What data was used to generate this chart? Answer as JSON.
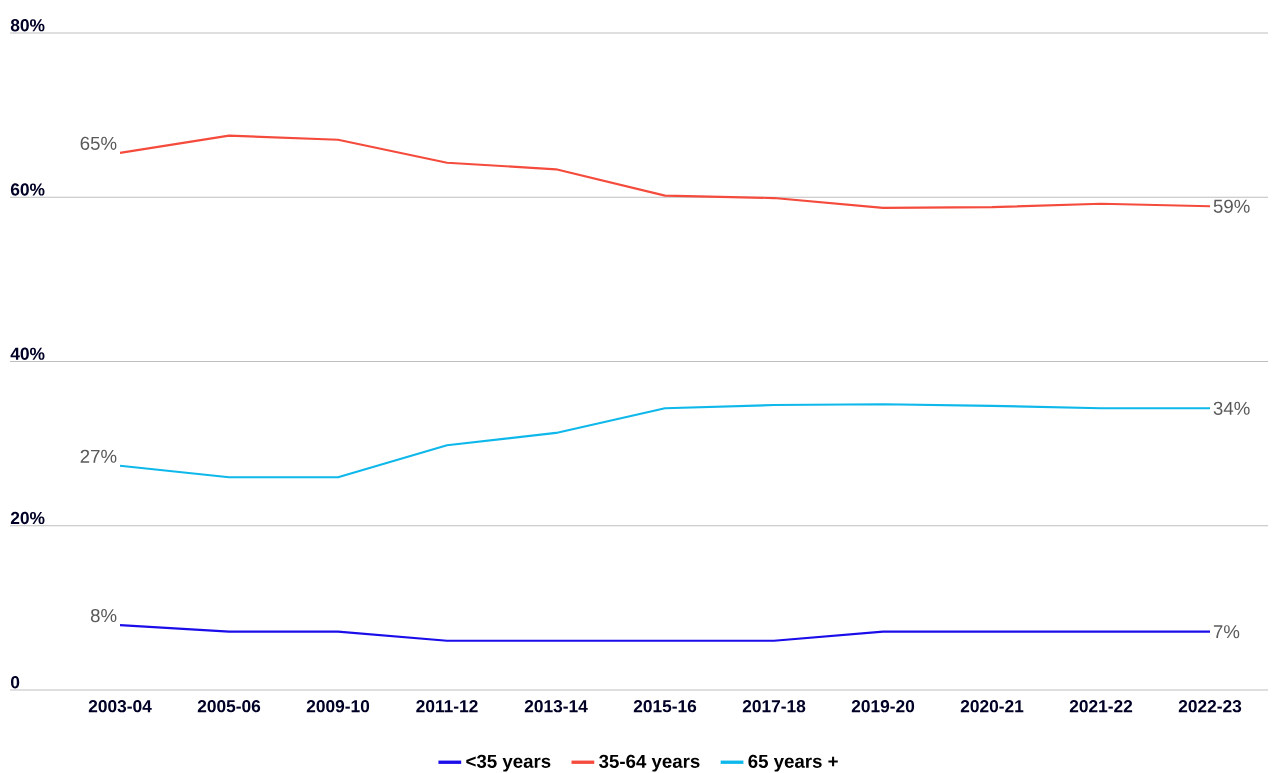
{
  "chart_data": {
    "type": "line",
    "categories": [
      "2003-04",
      "2005-06",
      "2009-10",
      "2011-12",
      "2013-14",
      "2015-16",
      "2017-18",
      "2019-20",
      "2020-21",
      "2021-22",
      "2022-23"
    ],
    "series": [
      {
        "name": "<35 years",
        "color": "#1a0dea",
        "values": [
          7.9,
          7.1,
          7.1,
          6.0,
          6.0,
          6.0,
          6.0,
          7.1,
          7.1,
          7.1,
          7.1
        ],
        "value_labels": [
          "8%",
          null,
          null,
          null,
          null,
          null,
          null,
          null,
          null,
          null,
          "7%"
        ]
      },
      {
        "name": "35-64 years",
        "color": "#f44b3c",
        "values": [
          65.4,
          67.5,
          67.0,
          64.2,
          63.4,
          60.2,
          59.9,
          58.7,
          58.8,
          59.2,
          58.9
        ],
        "value_labels": [
          "65%",
          null,
          null,
          null,
          null,
          null,
          null,
          null,
          null,
          null,
          "59%"
        ]
      },
      {
        "name": "65 years +",
        "color": "#0fb8ea",
        "values": [
          27.3,
          25.9,
          25.9,
          29.8,
          31.3,
          34.3,
          34.7,
          34.8,
          34.6,
          34.3,
          34.3
        ],
        "value_labels": [
          "27%",
          null,
          null,
          null,
          null,
          null,
          null,
          null,
          null,
          null,
          "34%"
        ]
      }
    ],
    "ylim": [
      0,
      80
    ],
    "yticks": [
      {
        "value": 0,
        "label": "0"
      },
      {
        "value": 20,
        "label": "20%"
      },
      {
        "value": 40,
        "label": "40%"
      },
      {
        "value": 60,
        "label": "60%"
      },
      {
        "value": 80,
        "label": "80%"
      }
    ],
    "grid": "y",
    "legend": "bottom",
    "marker": "none",
    "line_style": "solid"
  }
}
